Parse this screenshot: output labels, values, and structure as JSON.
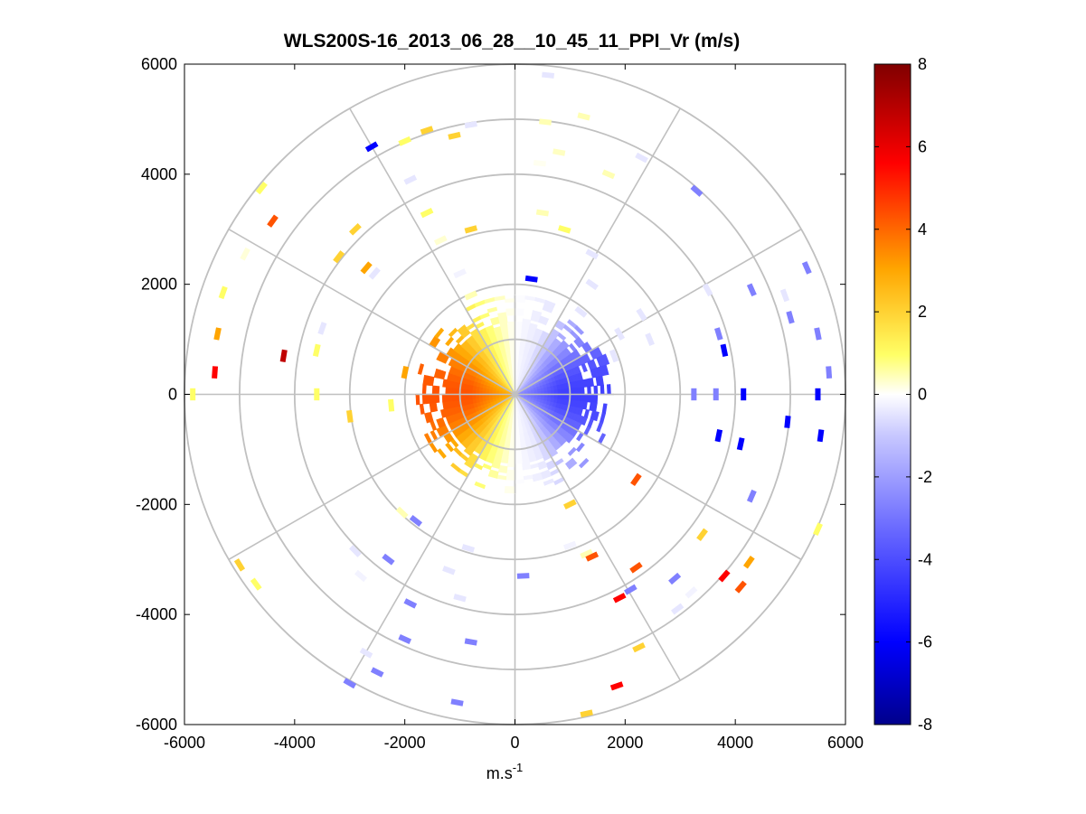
{
  "chart_data": {
    "type": "heatmap",
    "subtype": "polar-ppi-scan",
    "title": "WLS200S-16_2013_06_28__10_45_11_PPI_Vr (m/s)",
    "xlabel": "m.s",
    "xlabel_superscript": "-1",
    "ylabel": "",
    "xlim": [
      -6000,
      6000
    ],
    "ylim": [
      -6000,
      6000
    ],
    "xticks": [
      -6000,
      -4000,
      -2000,
      0,
      2000,
      4000,
      6000
    ],
    "yticks": [
      -6000,
      -4000,
      -2000,
      0,
      2000,
      4000,
      6000
    ],
    "xtick_labels": [
      "-6000",
      "-4000",
      "-2000",
      "0",
      "2000",
      "4000",
      "6000"
    ],
    "ytick_labels": [
      "-6000",
      "-4000",
      "-2000",
      "0",
      "2000",
      "4000",
      "6000"
    ],
    "range_rings": [
      1000,
      2000,
      3000,
      4000,
      5000,
      6000
    ],
    "spokes_deg": [
      0,
      30,
      60,
      90,
      120,
      150,
      180,
      210,
      240,
      270,
      300,
      330
    ],
    "colorbar": {
      "min": -8,
      "max": 8,
      "ticks": [
        -8,
        -6,
        -4,
        -2,
        0,
        2,
        4,
        6,
        8
      ],
      "tick_labels": [
        "-8",
        "-6",
        "-4",
        "-2",
        "0",
        "2",
        "4",
        "6",
        "8"
      ],
      "colors": [
        "#00008b",
        "#0000ff",
        "#8080ff",
        "#e6e6ff",
        "#ffffff",
        "#ffff66",
        "#ffa500",
        "#ff0000",
        "#800000"
      ]
    },
    "near_field": {
      "max_range": 1800,
      "max_radial_velocity": 5,
      "wind_from_azimuth_deg": 270,
      "description": "Dense radial velocity field near lidar: positive (toward warm colors) to the west, negative (blue) to the east"
    },
    "far_field_samples": [
      {
        "x": -5850,
        "y": 0,
        "v": 2
      },
      {
        "x": -5450,
        "y": 400,
        "v": 6
      },
      {
        "x": -5400,
        "y": 1100,
        "v": 4
      },
      {
        "x": -5300,
        "y": 1850,
        "v": 2
      },
      {
        "x": -4900,
        "y": 2550,
        "v": 0.5
      },
      {
        "x": -4600,
        "y": 3750,
        "v": 2
      },
      {
        "x": -4400,
        "y": 3150,
        "v": 5
      },
      {
        "x": -4200,
        "y": 700,
        "v": 7
      },
      {
        "x": -3600,
        "y": 0,
        "v": 2
      },
      {
        "x": -3600,
        "y": 800,
        "v": 2
      },
      {
        "x": -3500,
        "y": 1200,
        "v": -2
      },
      {
        "x": -3200,
        "y": 2500,
        "v": 3
      },
      {
        "x": -2900,
        "y": 3000,
        "v": 3
      },
      {
        "x": -2700,
        "y": 2300,
        "v": 4
      },
      {
        "x": -2600,
        "y": 4500,
        "v": -6
      },
      {
        "x": -2000,
        "y": 4600,
        "v": 2
      },
      {
        "x": -1600,
        "y": 4800,
        "v": 3
      },
      {
        "x": -1100,
        "y": 4700,
        "v": 3
      },
      {
        "x": -800,
        "y": 3000,
        "v": 3
      },
      {
        "x": -1900,
        "y": 3900,
        "v": -2
      },
      {
        "x": -800,
        "y": 4900,
        "v": -2
      },
      {
        "x": 600,
        "y": 5800,
        "v": -2
      },
      {
        "x": 1250,
        "y": 5050,
        "v": 1
      },
      {
        "x": 550,
        "y": 4950,
        "v": 1
      },
      {
        "x": 800,
        "y": 4400,
        "v": 0.8
      },
      {
        "x": 450,
        "y": 4200,
        "v": 0.2
      },
      {
        "x": 2300,
        "y": 4300,
        "v": -2
      },
      {
        "x": 3300,
        "y": 3700,
        "v": -4
      },
      {
        "x": 500,
        "y": 3300,
        "v": 1
      },
      {
        "x": 900,
        "y": 3000,
        "v": 2
      },
      {
        "x": 1400,
        "y": 2550,
        "v": -2
      },
      {
        "x": 3500,
        "y": 1900,
        "v": -2
      },
      {
        "x": 4300,
        "y": 1900,
        "v": -4
      },
      {
        "x": 4900,
        "y": 1800,
        "v": -2
      },
      {
        "x": 5300,
        "y": 2300,
        "v": -4
      },
      {
        "x": 5000,
        "y": 1400,
        "v": -4
      },
      {
        "x": 5500,
        "y": 1100,
        "v": -4
      },
      {
        "x": 5700,
        "y": 400,
        "v": -4
      },
      {
        "x": 5500,
        "y": 0,
        "v": -6
      },
      {
        "x": 4150,
        "y": 0,
        "v": -6
      },
      {
        "x": 3650,
        "y": 0,
        "v": -4
      },
      {
        "x": 3250,
        "y": 0,
        "v": -4
      },
      {
        "x": 4950,
        "y": -500,
        "v": -6
      },
      {
        "x": 5550,
        "y": -750,
        "v": -6
      },
      {
        "x": 3700,
        "y": -750,
        "v": -6
      },
      {
        "x": 4100,
        "y": -900,
        "v": -6
      },
      {
        "x": 4300,
        "y": -1850,
        "v": -4
      },
      {
        "x": 5500,
        "y": -2450,
        "v": 2
      },
      {
        "x": 3400,
        "y": -2550,
        "v": 3
      },
      {
        "x": 4250,
        "y": -3050,
        "v": 4
      },
      {
        "x": 4100,
        "y": -3500,
        "v": 5
      },
      {
        "x": 3800,
        "y": -3300,
        "v": 6
      },
      {
        "x": 3200,
        "y": -3600,
        "v": -1
      },
      {
        "x": 2950,
        "y": -3900,
        "v": -2
      },
      {
        "x": 2900,
        "y": -3350,
        "v": -4
      },
      {
        "x": 2200,
        "y": -3150,
        "v": 5
      },
      {
        "x": 2100,
        "y": -3550,
        "v": -4
      },
      {
        "x": 1900,
        "y": -3700,
        "v": 6
      },
      {
        "x": 1850,
        "y": -5300,
        "v": 6
      },
      {
        "x": 1300,
        "y": -5800,
        "v": 3
      },
      {
        "x": 2250,
        "y": -4600,
        "v": 3
      },
      {
        "x": 1300,
        "y": -2900,
        "v": 1
      },
      {
        "x": 1400,
        "y": -2950,
        "v": 5
      },
      {
        "x": 1000,
        "y": -2750,
        "v": -1
      },
      {
        "x": 2200,
        "y": -1550,
        "v": 5
      },
      {
        "x": 1000,
        "y": -2000,
        "v": 3
      },
      {
        "x": -5000,
        "y": -3100,
        "v": 3
      },
      {
        "x": -4700,
        "y": -3450,
        "v": 2
      },
      {
        "x": -2900,
        "y": -2850,
        "v": -2
      },
      {
        "x": -2800,
        "y": -3300,
        "v": -1
      },
      {
        "x": -2300,
        "y": -3000,
        "v": -4
      },
      {
        "x": -1200,
        "y": -3200,
        "v": -2
      },
      {
        "x": -850,
        "y": -2800,
        "v": -2
      },
      {
        "x": -2050,
        "y": -2150,
        "v": 1
      },
      {
        "x": -1800,
        "y": -2300,
        "v": -4
      },
      {
        "x": -1900,
        "y": -3800,
        "v": -4
      },
      {
        "x": -2000,
        "y": -4450,
        "v": -4
      },
      {
        "x": -2700,
        "y": -4700,
        "v": -2
      },
      {
        "x": -2500,
        "y": -5050,
        "v": -4
      },
      {
        "x": -3000,
        "y": -5250,
        "v": -4
      },
      {
        "x": -1050,
        "y": -5600,
        "v": -4
      },
      {
        "x": -800,
        "y": -4500,
        "v": -4
      },
      {
        "x": -1000,
        "y": -3700,
        "v": -2
      },
      {
        "x": 150,
        "y": -3300,
        "v": -4
      },
      {
        "x": -3000,
        "y": -400,
        "v": 3
      },
      {
        "x": -2250,
        "y": -200,
        "v": 2
      },
      {
        "x": -2000,
        "y": 400,
        "v": 4
      },
      {
        "x": 1200,
        "y": 1500,
        "v": -2
      },
      {
        "x": 1900,
        "y": 1100,
        "v": -2
      },
      {
        "x": 2300,
        "y": 1450,
        "v": -2
      },
      {
        "x": 2450,
        "y": 1000,
        "v": -2
      },
      {
        "x": 3700,
        "y": 1100,
        "v": -4
      },
      {
        "x": 3800,
        "y": 800,
        "v": -6
      },
      {
        "x": 1800,
        "y": 700,
        "v": -2
      },
      {
        "x": -2550,
        "y": 2200,
        "v": -2
      },
      {
        "x": -800,
        "y": 1800,
        "v": 1
      },
      {
        "x": 300,
        "y": 2100,
        "v": -6
      },
      {
        "x": 1400,
        "y": 2000,
        "v": -2
      },
      {
        "x": -1600,
        "y": 3300,
        "v": 2
      },
      {
        "x": -1350,
        "y": 2800,
        "v": 0.6
      },
      {
        "x": -1000,
        "y": 2200,
        "v": -1
      },
      {
        "x": 1700,
        "y": 4000,
        "v": 1
      }
    ]
  }
}
